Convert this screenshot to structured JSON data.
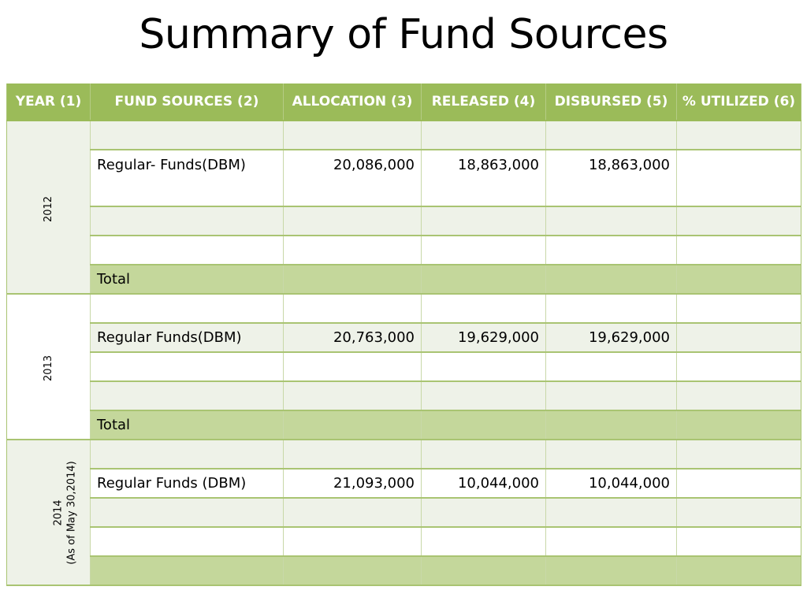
{
  "title": "Summary of Fund Sources",
  "headers": [
    "YEAR (1)",
    "FUND SOURCES (2)",
    "ALLOCATION (3)",
    "RELEASED (4)",
    "DISBURSED (5)",
    "% UTILIZED (6)"
  ],
  "groups": [
    {
      "year_lines": [
        "2012"
      ],
      "rows": [
        {
          "source": "",
          "allocation": "",
          "released": "",
          "disbursed": "",
          "utilized": ""
        },
        {
          "source": "Regular- Funds(DBM)",
          "allocation": "20,086,000",
          "released": "18,863,000",
          "disbursed": "18,863,000",
          "utilized": ""
        },
        {
          "source": "",
          "allocation": "",
          "released": "",
          "disbursed": "",
          "utilized": ""
        },
        {
          "source": "",
          "allocation": "",
          "released": "",
          "disbursed": "",
          "utilized": ""
        },
        {
          "source": "Total",
          "allocation": "",
          "released": "",
          "disbursed": "",
          "utilized": ""
        }
      ]
    },
    {
      "year_lines": [
        "2013"
      ],
      "rows": [
        {
          "source": "",
          "allocation": "",
          "released": "",
          "disbursed": "",
          "utilized": ""
        },
        {
          "source": "Regular Funds(DBM)",
          "allocation": "20,763,000",
          "released": "19,629,000",
          "disbursed": "19,629,000",
          "utilized": ""
        },
        {
          "source": "",
          "allocation": "",
          "released": "",
          "disbursed": "",
          "utilized": ""
        },
        {
          "source": "",
          "allocation": "",
          "released": "",
          "disbursed": "",
          "utilized": ""
        },
        {
          "source": "Total",
          "allocation": "",
          "released": "",
          "disbursed": "",
          "utilized": ""
        }
      ]
    },
    {
      "year_lines": [
        "2014",
        "(As of  May 30,2014)"
      ],
      "rows": [
        {
          "source": "",
          "allocation": "",
          "released": "",
          "disbursed": "",
          "utilized": ""
        },
        {
          "source": "Regular Funds (DBM)",
          "allocation": "21,093,000",
          "released": "10,044,000",
          "disbursed": "10,044,000",
          "utilized": ""
        },
        {
          "source": "",
          "allocation": "",
          "released": "",
          "disbursed": "",
          "utilized": ""
        },
        {
          "source": "",
          "allocation": "",
          "released": "",
          "disbursed": "",
          "utilized": ""
        },
        {
          "source": "",
          "allocation": "",
          "released": "",
          "disbursed": "",
          "utilized": ""
        }
      ]
    }
  ],
  "colors": {
    "header": "#9bbb59",
    "row_light": "#eef2e8",
    "row_total": "#c4d79b",
    "border": "#a9c472"
  }
}
